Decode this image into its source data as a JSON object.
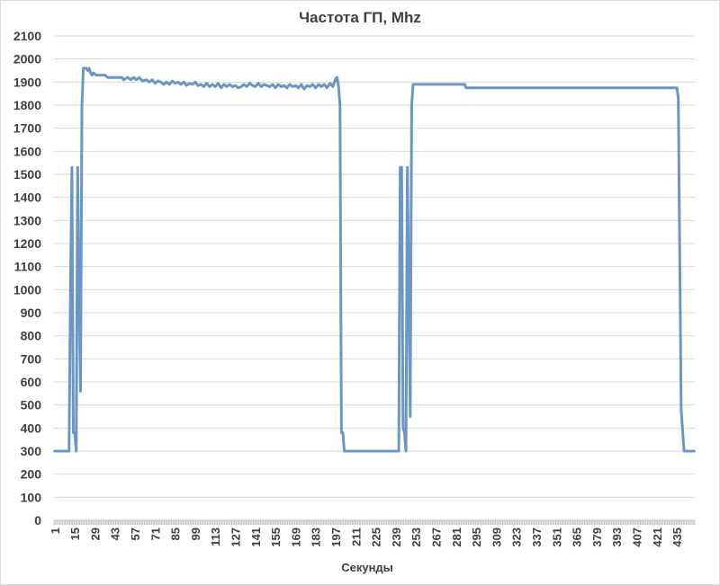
{
  "chart_data": {
    "type": "line",
    "title": "Частота ГП, Mhz",
    "xlabel": "Секунды",
    "ylabel": "",
    "ylim": [
      0,
      2100
    ],
    "xlim": [
      1,
      447
    ],
    "y_ticks": [
      "0",
      "100",
      "200",
      "300",
      "400",
      "500",
      "600",
      "700",
      "800",
      "900",
      "1000",
      "1100",
      "1200",
      "1300",
      "1400",
      "1500",
      "1600",
      "1700",
      "1800",
      "1900",
      "2000",
      "2100"
    ],
    "x_ticks": [
      "1",
      "15",
      "29",
      "43",
      "57",
      "71",
      "85",
      "99",
      "113",
      "127",
      "141",
      "155",
      "169",
      "183",
      "197",
      "211",
      "225",
      "239",
      "253",
      "267",
      "281",
      "295",
      "309",
      "323",
      "337",
      "351",
      "365",
      "379",
      "393",
      "407",
      "421",
      "435"
    ],
    "grid": true,
    "legend": "none",
    "series": [
      {
        "color": "#6a96c6",
        "points": [
          [
            1,
            300
          ],
          [
            11,
            300
          ],
          [
            12,
            1000
          ],
          [
            13,
            1530
          ],
          [
            14,
            380
          ],
          [
            15,
            380
          ],
          [
            16,
            300
          ],
          [
            17,
            1530
          ],
          [
            18,
            1000
          ],
          [
            19,
            560
          ],
          [
            20,
            1800
          ],
          [
            21,
            1960
          ],
          [
            23,
            1960
          ],
          [
            24,
            1950
          ],
          [
            25,
            1960
          ],
          [
            26,
            1940
          ],
          [
            27,
            1930
          ],
          [
            28,
            1940
          ],
          [
            30,
            1930
          ],
          [
            36,
            1930
          ],
          [
            38,
            1920
          ],
          [
            48,
            1920
          ],
          [
            49,
            1910
          ],
          [
            52,
            1920
          ],
          [
            54,
            1910
          ],
          [
            56,
            1920
          ],
          [
            58,
            1910
          ],
          [
            60,
            1920
          ],
          [
            62,
            1905
          ],
          [
            65,
            1910
          ],
          [
            67,
            1900
          ],
          [
            69,
            1910
          ],
          [
            71,
            1895
          ],
          [
            73,
            1905
          ],
          [
            75,
            1900
          ],
          [
            77,
            1890
          ],
          [
            79,
            1900
          ],
          [
            81,
            1890
          ],
          [
            83,
            1905
          ],
          [
            85,
            1895
          ],
          [
            87,
            1900
          ],
          [
            89,
            1890
          ],
          [
            91,
            1900
          ],
          [
            93,
            1885
          ],
          [
            95,
            1895
          ],
          [
            97,
            1890
          ],
          [
            99,
            1900
          ],
          [
            101,
            1885
          ],
          [
            103,
            1890
          ],
          [
            105,
            1880
          ],
          [
            107,
            1895
          ],
          [
            109,
            1880
          ],
          [
            111,
            1890
          ],
          [
            113,
            1880
          ],
          [
            115,
            1895
          ],
          [
            117,
            1875
          ],
          [
            119,
            1890
          ],
          [
            121,
            1880
          ],
          [
            123,
            1890
          ],
          [
            125,
            1880
          ],
          [
            127,
            1885
          ],
          [
            129,
            1875
          ],
          [
            131,
            1880
          ],
          [
            133,
            1890
          ],
          [
            135,
            1880
          ],
          [
            137,
            1895
          ],
          [
            139,
            1885
          ],
          [
            141,
            1880
          ],
          [
            143,
            1895
          ],
          [
            145,
            1880
          ],
          [
            147,
            1890
          ],
          [
            149,
            1885
          ],
          [
            151,
            1880
          ],
          [
            153,
            1890
          ],
          [
            155,
            1875
          ],
          [
            157,
            1890
          ],
          [
            159,
            1880
          ],
          [
            161,
            1885
          ],
          [
            163,
            1875
          ],
          [
            165,
            1890
          ],
          [
            167,
            1880
          ],
          [
            169,
            1885
          ],
          [
            171,
            1875
          ],
          [
            173,
            1890
          ],
          [
            175,
            1870
          ],
          [
            177,
            1885
          ],
          [
            179,
            1880
          ],
          [
            181,
            1890
          ],
          [
            183,
            1875
          ],
          [
            185,
            1890
          ],
          [
            187,
            1880
          ],
          [
            189,
            1890
          ],
          [
            191,
            1875
          ],
          [
            193,
            1895
          ],
          [
            195,
            1880
          ],
          [
            197,
            1915
          ],
          [
            198,
            1920
          ],
          [
            199,
            1880
          ],
          [
            200,
            1800
          ],
          [
            201,
            380
          ],
          [
            202,
            380
          ],
          [
            203,
            300
          ],
          [
            241,
            300
          ],
          [
            242,
            1530
          ],
          [
            243,
            1530
          ],
          [
            244,
            400
          ],
          [
            245,
            380
          ],
          [
            246,
            300
          ],
          [
            247,
            1530
          ],
          [
            248,
            1000
          ],
          [
            249,
            450
          ],
          [
            250,
            1800
          ],
          [
            251,
            1890
          ],
          [
            287,
            1890
          ],
          [
            288,
            1875
          ],
          [
            435,
            1875
          ],
          [
            436,
            1830
          ],
          [
            438,
            480
          ],
          [
            440,
            300
          ],
          [
            447,
            300
          ]
        ]
      }
    ]
  }
}
